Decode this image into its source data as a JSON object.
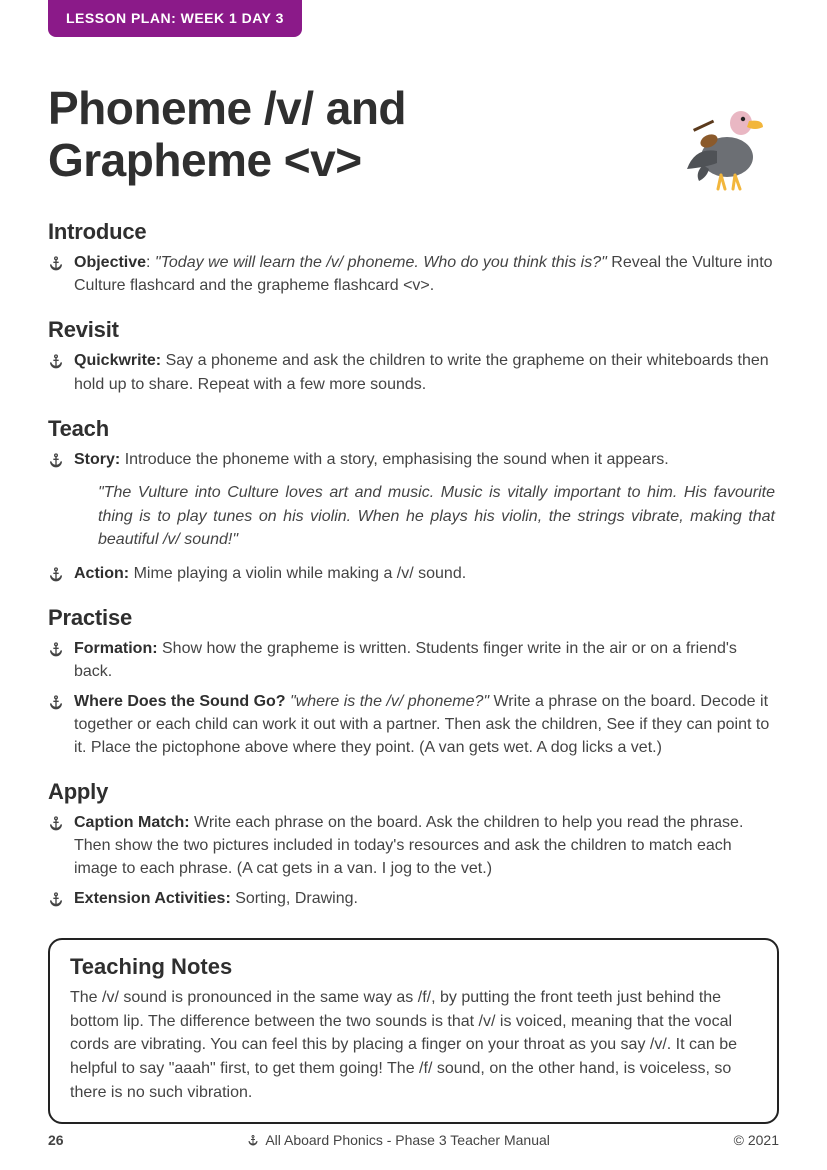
{
  "colors": {
    "tab_bg": "#8b1a89",
    "tab_text": "#ffffff",
    "heading": "#2f2f2f",
    "body_text": "#444444",
    "notes_border": "#222222",
    "page_bg": "#ffffff"
  },
  "typography": {
    "h1_size_pt": 34,
    "h2_size_pt": 16,
    "body_size_pt": 12,
    "tab_size_pt": 10
  },
  "tab": "LESSON PLAN: WEEK 1 DAY 3",
  "title": "Phoneme /v/ and Grapheme <v>",
  "mascot": {
    "name": "vulture-with-violin-icon",
    "palette": {
      "body": "#6c6f74",
      "wing": "#4f5256",
      "head": "#e9b7c3",
      "beak": "#f2b63c",
      "violin": "#8b5a2b",
      "feet": "#f2b63c"
    }
  },
  "sections": [
    {
      "heading": "Introduce",
      "items": [
        {
          "lead": "Objective",
          "lead_suffix": ": ",
          "quote": "\"Today we will learn the /v/ phoneme. Who do you think this is?\"",
          "tail": " Reveal the Vulture into Culture flashcard and the grapheme flashcard <v>."
        }
      ]
    },
    {
      "heading": "Revisit",
      "items": [
        {
          "lead": "Quickwrite:",
          "tail": " Say a phoneme and ask the children to write the grapheme on their whiteboards then hold up to share. Repeat with a few more sounds."
        }
      ]
    },
    {
      "heading": "Teach",
      "items": [
        {
          "lead": "Story:",
          "tail": " Introduce the phoneme with a story, emphasising the sound when it appears."
        }
      ],
      "blockquote": "\"The Vulture into Culture loves art and music. Music is vitally important to him. His favourite thing is to play tunes on his violin. When he plays his violin, the strings vibrate, making that beautiful /v/ sound!\"",
      "items_after": [
        {
          "lead": "Action:",
          "tail": " Mime playing a violin while making a /v/ sound."
        }
      ]
    },
    {
      "heading": "Practise",
      "items": [
        {
          "lead": "Formation:",
          "tail": " Show how the grapheme is written. Students finger write in the air or on a friend's back."
        },
        {
          "lead": "Where Does the Sound Go?",
          "tail": " Write a phrase on the board. Decode it together or each child can work it out with a partner. Then ask the children, ",
          "quote": "\"where is the /v/ phoneme?\"",
          "tail2": " See if they can point to it. Place the pictophone above where they point. (A van gets wet. A dog licks a vet.)"
        }
      ]
    },
    {
      "heading": "Apply",
      "items": [
        {
          "lead": "Caption Match:",
          "tail": " Write each phrase on the board. Ask the children to help you read the phrase. Then show the two pictures included in today's resources and ask the children to match each image to each phrase. (A cat gets in a van. I jog to the vet.)"
        },
        {
          "lead": "Extension Activities:",
          "tail": " Sorting, Drawing."
        }
      ]
    }
  ],
  "notes": {
    "heading": "Teaching Notes",
    "body": "The /v/ sound is pronounced in the same way as /f/, by putting the front teeth just behind the bottom lip. The difference between the two sounds is that /v/ is voiced, meaning that the vocal cords are vibrating. You can feel this by placing a finger on your throat as you say /v/. It can be helpful to say \"aaah\" first, to get them going! The /f/ sound, on the other hand, is voiceless, so there is no such vibration."
  },
  "footer": {
    "page_number": "26",
    "center": "All Aboard Phonics - Phase 3 Teacher Manual",
    "right": "© 2021"
  }
}
